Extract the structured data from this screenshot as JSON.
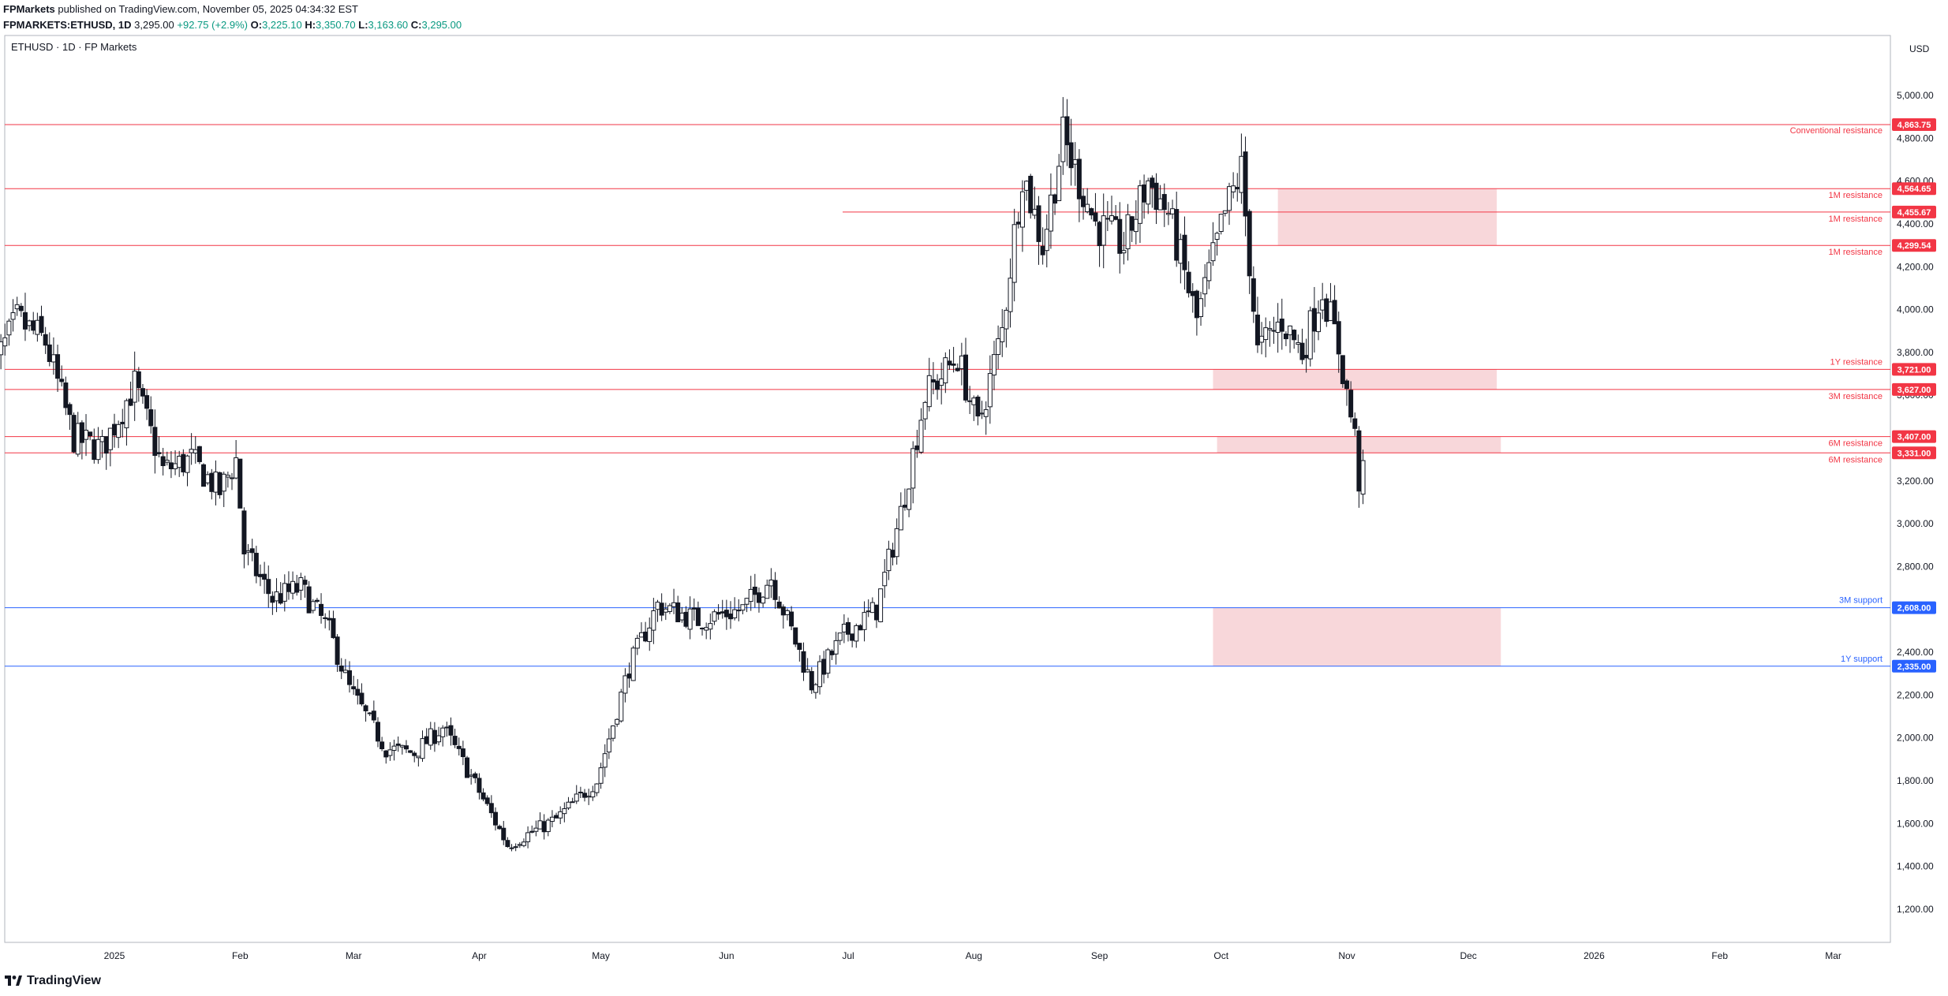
{
  "header": {
    "publisher": "FPMarkets",
    "published_text": "published on TradingView.com, November 05, 2025 04:34:32 EST",
    "symbol": "FPMARKETS:ETHUSD, 1D",
    "last": "3,295.00",
    "change": "+92.75 (+2.9%)",
    "o_label": "O:",
    "o_value": "3,225.10",
    "h_label": "H:",
    "h_value": "3,350.70",
    "l_label": "L:",
    "l_value": "3,163.60",
    "c_label": "C:",
    "c_value": "3,295.00"
  },
  "chart_title": "ETHUSD · 1D · FP Markets",
  "currency": "USD",
  "footer": {
    "brand": "TradingView"
  },
  "colors": {
    "resistance": "#f23645",
    "support": "#2962ff",
    "zone": "#f8d7da",
    "candle": "#131722",
    "up_text": "#089981"
  },
  "chart_data": {
    "type": "candlestick",
    "y_axis": {
      "min": 1050,
      "max": 5100,
      "ticks": [
        1200,
        1400,
        1600,
        1800,
        2000,
        2200,
        2400,
        2600,
        2800,
        3000,
        3200,
        3400,
        3600,
        3800,
        4000,
        4200,
        4400,
        4600,
        4800,
        5000
      ]
    },
    "x_labels": [
      "2025",
      "Feb",
      "Mar",
      "Apr",
      "May",
      "Jun",
      "Jul",
      "Aug",
      "Sep",
      "Oct",
      "Nov",
      "Dec",
      "2026",
      "Feb",
      "Mar"
    ],
    "levels": [
      {
        "label": "Conventional resistance",
        "value": 4863.75,
        "price": "4,863.75",
        "kind": "resistance"
      },
      {
        "label": "1M resistance",
        "value": 4564.65,
        "price": "4,564.65",
        "kind": "resistance"
      },
      {
        "label": "1M resistance",
        "value": 4455.67,
        "price": "4,455.67",
        "kind": "resistance"
      },
      {
        "label": "1M resistance",
        "value": 4299.54,
        "price": "4,299.54",
        "kind": "resistance"
      },
      {
        "label": "1Y resistance",
        "value": 3721.0,
        "price": "3,721.00",
        "kind": "resistance"
      },
      {
        "label": "3M resistance",
        "value": 3627.0,
        "price": "3,627.00",
        "kind": "resistance"
      },
      {
        "label": "6M resistance",
        "value": 3407.0,
        "price": "3,407.00",
        "kind": "resistance"
      },
      {
        "label": "6M resistance",
        "value": 3331.0,
        "price": "3,331.00",
        "kind": "resistance"
      },
      {
        "label": "3M support",
        "value": 2608.0,
        "price": "2,608.00",
        "kind": "support"
      },
      {
        "label": "1Y support",
        "value": 2335.0,
        "price": "2,335.00",
        "kind": "support"
      }
    ],
    "zones": [
      {
        "from_date": "2025-10-15",
        "to_date": "2025-12-08",
        "low": 4299.54,
        "high": 4564.65
      },
      {
        "from_date": "2025-09-29",
        "to_date": "2025-12-08",
        "low": 3627.0,
        "high": 3721.0
      },
      {
        "from_date": "2025-09-30",
        "to_date": "2025-12-09",
        "low": 3331.0,
        "high": 3407.0
      },
      {
        "from_date": "2025-09-29",
        "to_date": "2025-12-09",
        "low": 2335.0,
        "high": 2608.0
      }
    ],
    "series_anchors": [
      [
        "2024-12-01",
        3680
      ],
      [
        "2024-12-08",
        3950
      ],
      [
        "2024-12-15",
        3850
      ],
      [
        "2024-12-22",
        3400
      ],
      [
        "2024-12-29",
        3350
      ],
      [
        "2025-01-06",
        3650
      ],
      [
        "2025-01-13",
        3250
      ],
      [
        "2025-01-20",
        3300
      ],
      [
        "2025-01-27",
        3150
      ],
      [
        "2025-01-31",
        3300
      ],
      [
        "2025-02-02",
        2870
      ],
      [
        "2025-02-09",
        2650
      ],
      [
        "2025-02-16",
        2700
      ],
      [
        "2025-02-23",
        2500
      ],
      [
        "2025-02-28",
        2230
      ],
      [
        "2025-03-09",
        1950
      ],
      [
        "2025-03-16",
        1930
      ],
      [
        "2025-03-23",
        2050
      ],
      [
        "2025-03-30",
        1820
      ],
      [
        "2025-04-08",
        1500
      ],
      [
        "2025-04-20",
        1620
      ],
      [
        "2025-04-30",
        1800
      ],
      [
        "2025-05-08",
        2330
      ],
      [
        "2025-05-15",
        2620
      ],
      [
        "2025-05-25",
        2550
      ],
      [
        "2025-06-05",
        2600
      ],
      [
        "2025-06-12",
        2750
      ],
      [
        "2025-06-22",
        2250
      ],
      [
        "2025-06-30",
        2480
      ],
      [
        "2025-07-08",
        2600
      ],
      [
        "2025-07-14",
        3050
      ],
      [
        "2025-07-20",
        3600
      ],
      [
        "2025-07-28",
        3780
      ],
      [
        "2025-08-02",
        3450
      ],
      [
        "2025-08-08",
        3900
      ],
      [
        "2025-08-13",
        4650
      ],
      [
        "2025-08-18",
        4300
      ],
      [
        "2025-08-23",
        4800
      ],
      [
        "2025-08-31",
        4400
      ],
      [
        "2025-09-07",
        4300
      ],
      [
        "2025-09-13",
        4600
      ],
      [
        "2025-09-18",
        4450
      ],
      [
        "2025-09-25",
        3950
      ],
      [
        "2025-10-02",
        4450
      ],
      [
        "2025-10-06",
        4650
      ],
      [
        "2025-10-10",
        3800
      ],
      [
        "2025-10-16",
        3950
      ],
      [
        "2025-10-21",
        3800
      ],
      [
        "2025-10-26",
        4100
      ],
      [
        "2025-10-30",
        3820
      ],
      [
        "2025-11-03",
        3400
      ],
      [
        "2025-11-04",
        3200
      ],
      [
        "2025-11-05",
        3295
      ]
    ]
  }
}
